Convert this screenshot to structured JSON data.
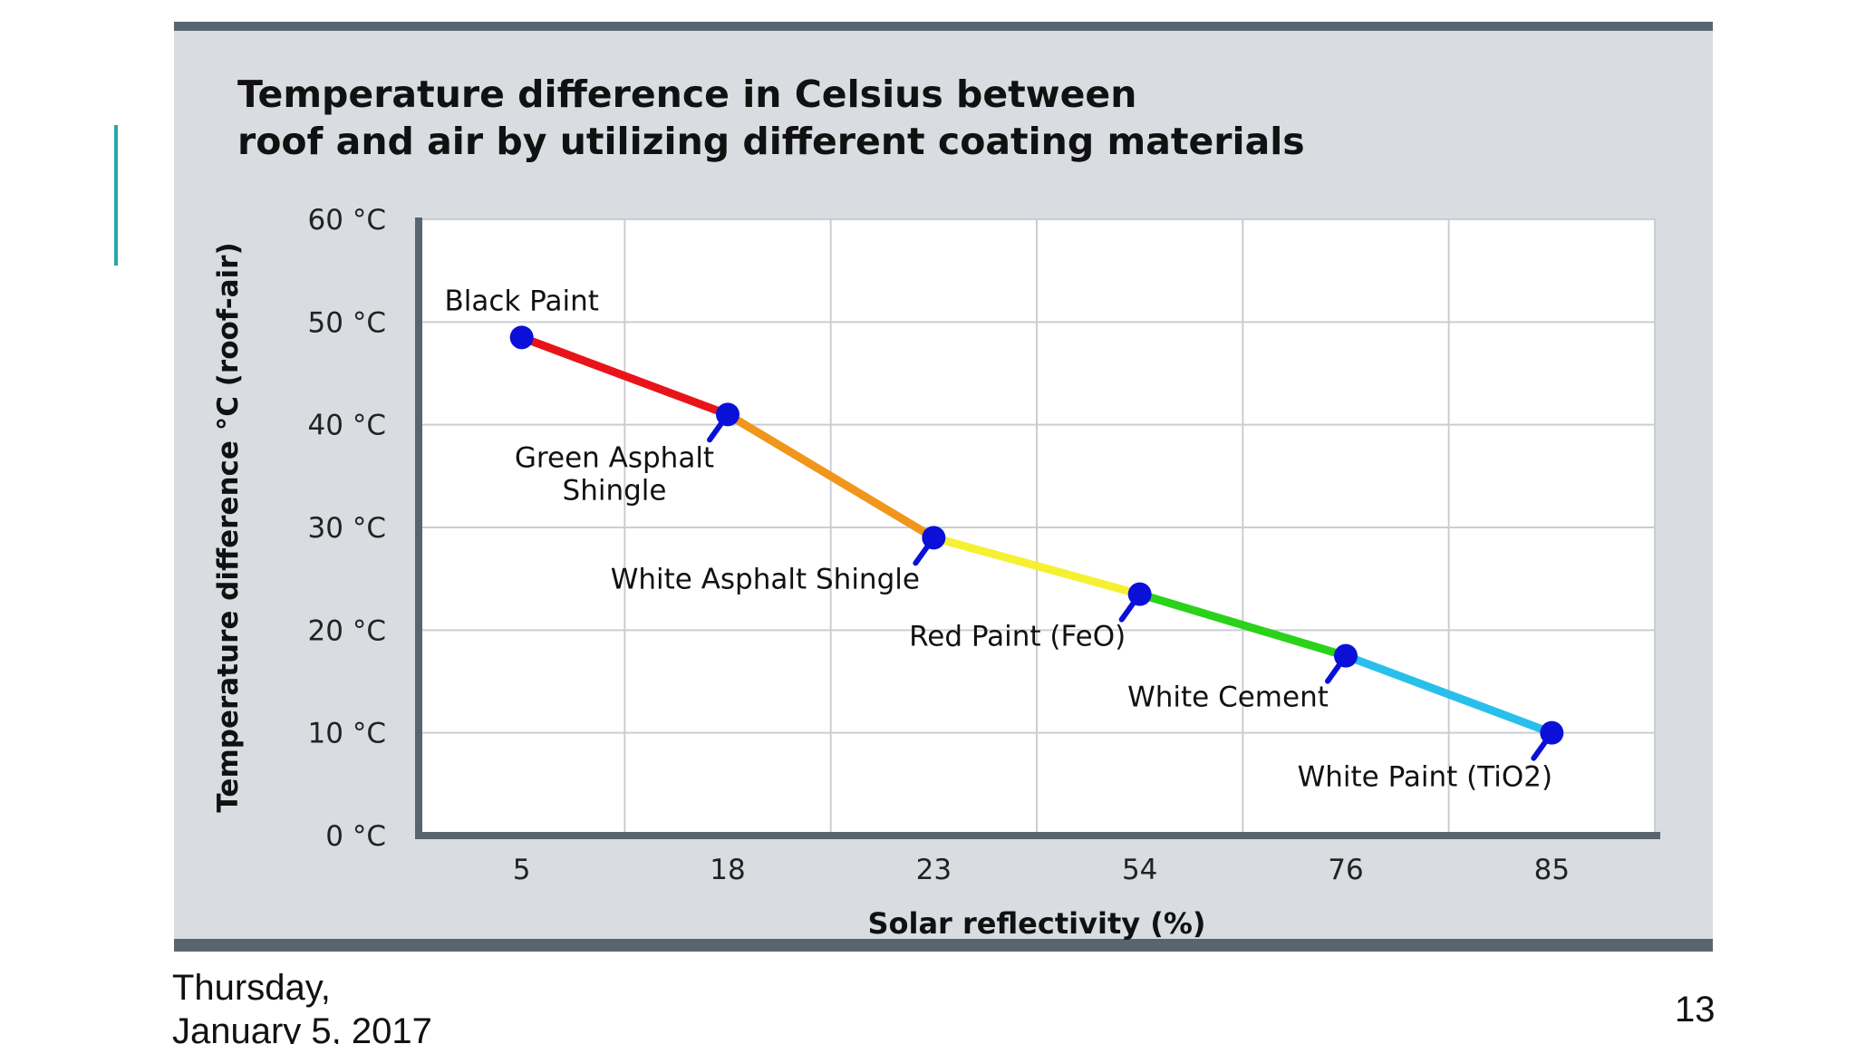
{
  "slide": {
    "date_line1": "Thursday,",
    "date_line2": "January 5, 2017",
    "page_number": "13"
  },
  "colors": {
    "frame_background": "#d9dde1",
    "frame_border": "#58656f",
    "accent": "#2aa6a6",
    "marker": "#0a10d8"
  },
  "chart_data": {
    "type": "line",
    "title_line1": "Temperature difference in Celsius between",
    "title_line2": "roof and air by utilizing different coating materials",
    "xlabel": "Solar reflectivity (%)",
    "ylabel": "Temperature difference °C (roof-air)",
    "categories": [
      "5",
      "18",
      "23",
      "54",
      "76",
      "85"
    ],
    "y_ticks": [
      "0 °C",
      "10 °C",
      "20 °C",
      "30 °C",
      "40 °C",
      "50 °C",
      "60 °C"
    ],
    "ylim": [
      0,
      60
    ],
    "grid": true,
    "points": [
      {
        "x": 5,
        "y": 48.5,
        "label": "Black Paint"
      },
      {
        "x": 18,
        "y": 41,
        "label": "Green Asphalt Shingle"
      },
      {
        "x": 23,
        "y": 29,
        "label": "White Asphalt Shingle"
      },
      {
        "x": 54,
        "y": 23.5,
        "label": "Red Paint (FeO)"
      },
      {
        "x": 76,
        "y": 17.5,
        "label": "White Cement"
      },
      {
        "x": 85,
        "y": 10,
        "label": "White Paint (TiO2)"
      }
    ],
    "segment_colors": [
      "#e8141a",
      "#f0961a",
      "#f5f032",
      "#2ad21a",
      "#28c0ea"
    ]
  }
}
